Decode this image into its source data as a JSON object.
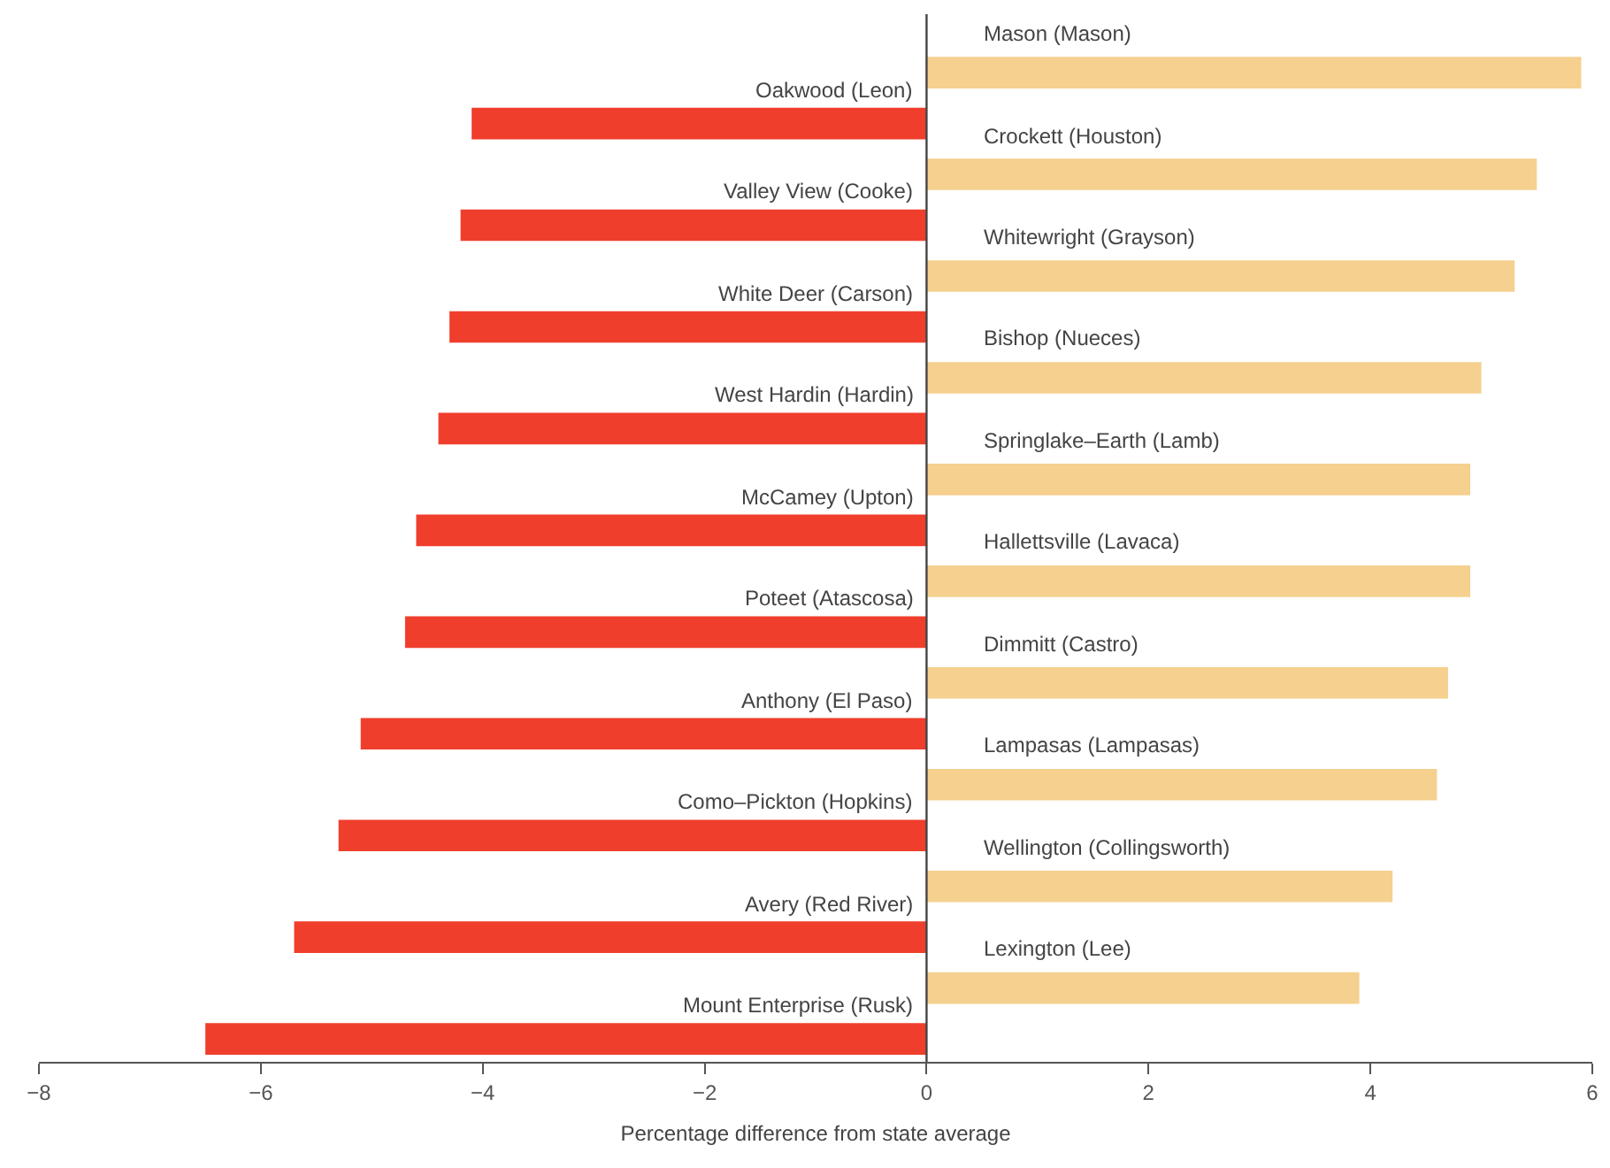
{
  "chart_data": {
    "type": "bar",
    "orientation": "horizontal",
    "xlabel": "Percentage difference from state average",
    "categories": [
      "Mason (Mason)",
      "Oakwood (Leon)",
      "Crockett (Houston)",
      "Valley View (Cooke)",
      "Whitewright (Grayson)",
      "White Deer (Carson)",
      "Bishop (Nueces)",
      "West Hardin (Hardin)",
      "Springlake–Earth (Lamb)",
      "McCamey (Upton)",
      "Hallettsville (Lavaca)",
      "Poteet (Atascosa)",
      "Dimmitt (Castro)",
      "Anthony (El Paso)",
      "Lampasas (Lampasas)",
      "Como–Pickton (Hopkins)",
      "Wellington (Collingsworth)",
      "Avery (Red River)",
      "Lexington (Lee)",
      "Mount Enterprise (Rusk)"
    ],
    "values": [
      5.9,
      -4.1,
      5.5,
      -4.2,
      5.3,
      -4.3,
      5.0,
      -4.4,
      4.9,
      -4.6,
      4.9,
      -4.7,
      4.7,
      -5.1,
      4.6,
      -5.3,
      4.2,
      -5.7,
      3.9,
      -6.5
    ],
    "colors": [
      "#f5d08e",
      "#f03e2c",
      "#f5d08e",
      "#f03e2c",
      "#f5d08e",
      "#f03e2c",
      "#f5d08e",
      "#f03e2c",
      "#f5d08e",
      "#f03e2c",
      "#f5d08e",
      "#f03e2c",
      "#f5d08e",
      "#f03e2c",
      "#f5d08e",
      "#f03e2c",
      "#f5d08e",
      "#f03e2c",
      "#f5d08e",
      "#f03e2c"
    ],
    "xlim": [
      -8,
      6
    ],
    "xticks": [
      {
        "value": -8,
        "label": "−8"
      },
      {
        "value": -6,
        "label": "−6"
      },
      {
        "value": -4,
        "label": "−4"
      },
      {
        "value": -2,
        "label": "−2"
      },
      0,
      2,
      4,
      6
    ],
    "ref_lines": [
      {
        "axis": "x",
        "value": 0,
        "color": "#444444",
        "line_style": "solid"
      }
    ],
    "tick_labels": "x"
  }
}
